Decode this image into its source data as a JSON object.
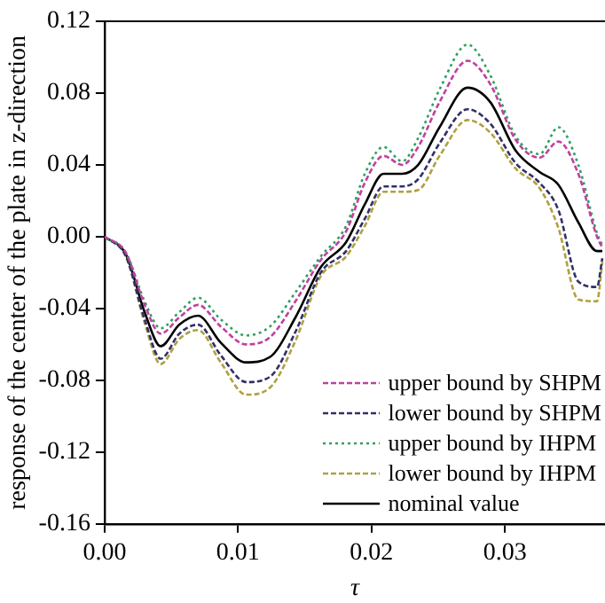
{
  "chart_data": {
    "type": "line",
    "xlabel": "τ",
    "ylabel": "response of the center of the plate in z-direction",
    "x": [
      0,
      0.0016,
      0.003,
      0.0042,
      0.0056,
      0.007,
      0.0087,
      0.0106,
      0.0124,
      0.0143,
      0.0162,
      0.0181,
      0.0195,
      0.0209,
      0.0223,
      0.0235,
      0.0251,
      0.0272,
      0.0289,
      0.0308,
      0.0326,
      0.034,
      0.0355,
      0.0369,
      0.0373
    ],
    "series": [
      {
        "name": "upper bound by SHPM",
        "color": "#c040a0",
        "line_style": "dashed",
        "values": [
          0,
          -0.009,
          -0.038,
          -0.054,
          -0.045,
          -0.038,
          -0.05,
          -0.06,
          -0.056,
          -0.036,
          -0.013,
          0.003,
          0.03,
          0.045,
          0.04,
          0.05,
          0.075,
          0.098,
          0.085,
          0.054,
          0.044,
          0.053,
          0.035,
          0,
          -0.006
        ]
      },
      {
        "name": "lower bound by SHPM",
        "color": "#303068",
        "line_style": "dashed",
        "values": [
          0,
          -0.011,
          -0.046,
          -0.068,
          -0.054,
          -0.049,
          -0.066,
          -0.081,
          -0.078,
          -0.053,
          -0.02,
          -0.008,
          0.01,
          0.028,
          0.028,
          0.032,
          0.052,
          0.071,
          0.063,
          0.041,
          0.03,
          0.015,
          -0.025,
          -0.028,
          -0.012
        ]
      },
      {
        "name": "upper bound by IHPM",
        "color": "#30a060",
        "line_style": "dotted",
        "values": [
          0,
          -0.009,
          -0.036,
          -0.051,
          -0.042,
          -0.034,
          -0.046,
          -0.055,
          -0.05,
          -0.031,
          -0.011,
          0.006,
          0.035,
          0.05,
          0.042,
          0.055,
          0.082,
          0.107,
          0.09,
          0.056,
          0.046,
          0.061,
          0.04,
          0.002,
          -0.005
        ]
      },
      {
        "name": "lower bound by IHPM",
        "color": "#b0a040",
        "line_style": "dashed",
        "values": [
          0,
          -0.011,
          -0.048,
          -0.071,
          -0.057,
          -0.052,
          -0.07,
          -0.088,
          -0.084,
          -0.058,
          -0.022,
          -0.011,
          0.006,
          0.025,
          0.025,
          0.026,
          0.045,
          0.065,
          0.058,
          0.038,
          0.027,
          0.005,
          -0.035,
          -0.036,
          -0.014
        ]
      },
      {
        "name": "nominal value",
        "color": "#000000",
        "line_style": "solid",
        "values": [
          0,
          -0.01,
          -0.042,
          -0.061,
          -0.049,
          -0.044,
          -0.059,
          -0.07,
          -0.067,
          -0.045,
          -0.017,
          -0.003,
          0.018,
          0.035,
          0.035,
          0.04,
          0.061,
          0.083,
          0.075,
          0.048,
          0.036,
          0.029,
          0.008,
          -0.008,
          -0.008
        ]
      }
    ],
    "xlim": [
      0,
      0.0375
    ],
    "xticks": [
      {
        "value": 0,
        "label": "0.00"
      },
      0.01,
      0.02,
      0.03
    ],
    "ylim": [
      -0.16,
      0.12
    ],
    "yticks": [
      -0.16,
      -0.12,
      -0.08,
      -0.04,
      {
        "value": 0,
        "label": "0.00"
      },
      0.04,
      0.08,
      0.12
    ],
    "grid": false,
    "legend": "bottom right",
    "marker": "none"
  }
}
